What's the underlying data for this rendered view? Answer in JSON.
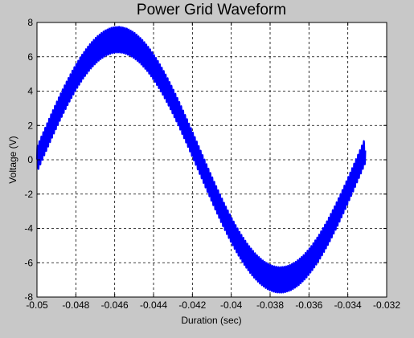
{
  "chart_data": {
    "type": "line",
    "title": "Power Grid Waveform",
    "xlabel": "Duration (sec)",
    "ylabel": "Voltage (V)",
    "xlim": [
      -0.05,
      -0.032
    ],
    "ylim": [
      -8,
      8
    ],
    "xticks": [
      -0.05,
      -0.048,
      -0.046,
      -0.044,
      -0.042,
      -0.04,
      -0.038,
      -0.036,
      -0.034,
      -0.032
    ],
    "xtick_labels": [
      "-0.05",
      "-0.048",
      "-0.046",
      "-0.044",
      "-0.042",
      "-0.04",
      "-0.038",
      "-0.036",
      "-0.034",
      "-0.032"
    ],
    "yticks": [
      -8,
      -6,
      -4,
      -2,
      0,
      2,
      4,
      6,
      8
    ],
    "ytick_labels": [
      "-8",
      "-6",
      "-4",
      "-2",
      "0",
      "2",
      "4",
      "6",
      "8"
    ],
    "grid": true,
    "grid_style": "dashed",
    "series": [
      {
        "color": "#0000ff",
        "x_start": -0.05,
        "x_end": -0.0331,
        "fundamental_amplitude": 7.0,
        "period": 0.0167,
        "peak_x": -0.04583,
        "trough_x": -0.03747,
        "ripple_amplitude": 0.75,
        "ripple_period": 0.0001,
        "end_value": 0.5
      }
    ]
  }
}
